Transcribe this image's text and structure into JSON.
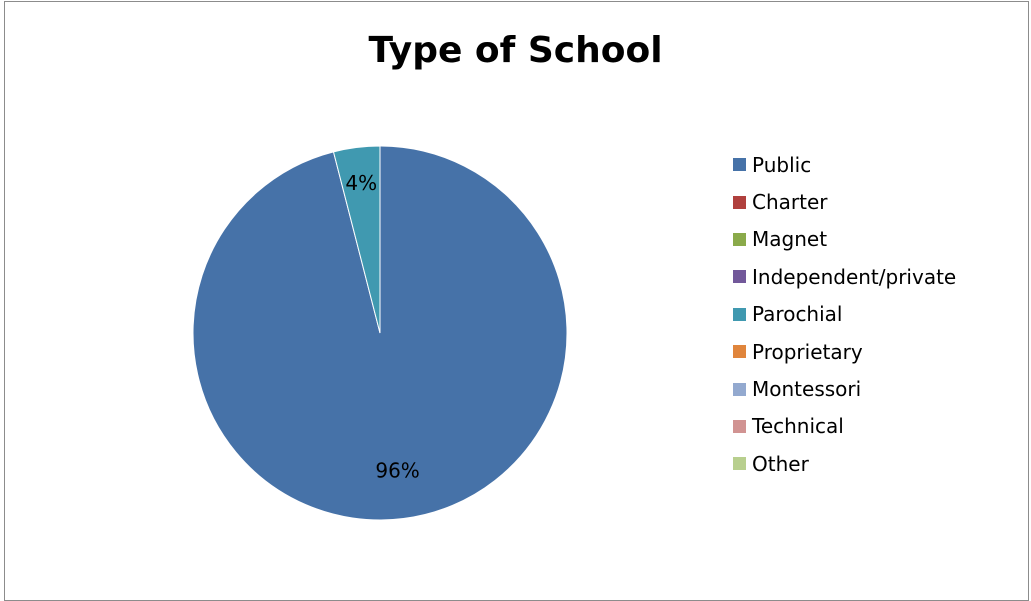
{
  "chart_data": {
    "type": "pie",
    "title": "Type of School",
    "categories": [
      "Public",
      "Charter",
      "Magnet",
      "Independent/private",
      "Parochial",
      "Proprietary",
      "Montessori",
      "Technical",
      "Other"
    ],
    "values": [
      96,
      0,
      0,
      0,
      4,
      0,
      0,
      0,
      0
    ],
    "colors": [
      "#4672A8",
      "#B0403D",
      "#8AAA4A",
      "#72589A",
      "#4099B0",
      "#E0853C",
      "#93A9CF",
      "#D19392",
      "#B8CF8E"
    ],
    "data_labels": [
      "96%",
      "",
      "",
      "",
      "4%",
      "",
      "",
      "",
      ""
    ],
    "legend_position": "right"
  }
}
